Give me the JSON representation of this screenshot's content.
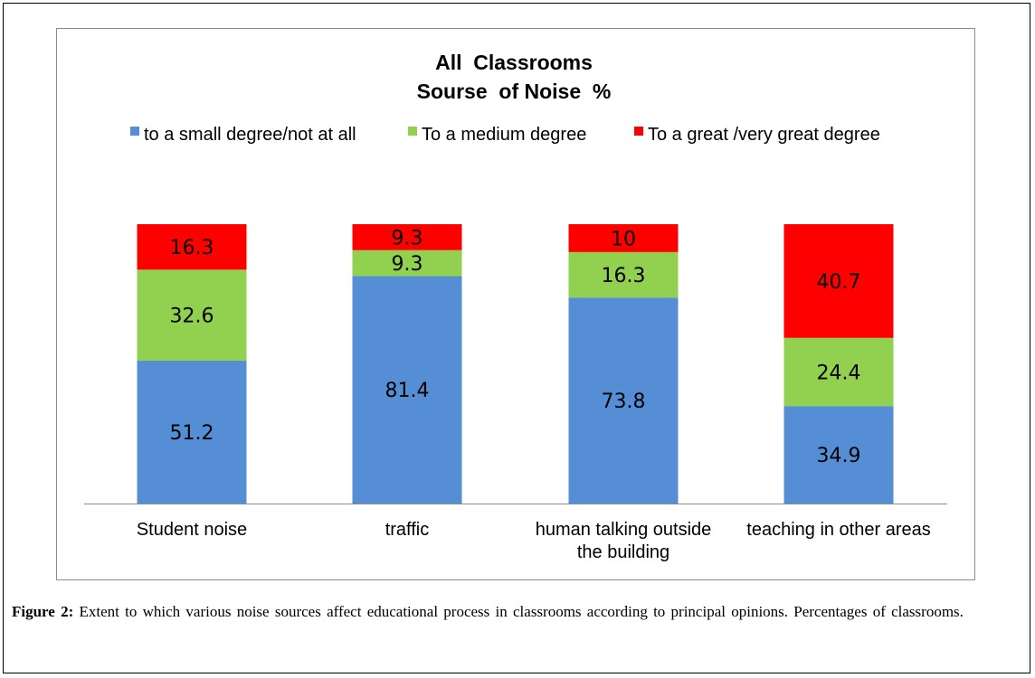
{
  "chart_data": {
    "type": "bar",
    "stacked": true,
    "title_lines": [
      "All  Classrooms",
      "Sourse  of Noise  %"
    ],
    "categories": [
      [
        "Student noise"
      ],
      [
        "traffic"
      ],
      [
        "human talking outside",
        "the building"
      ],
      [
        "teaching in other areas"
      ]
    ],
    "series": [
      {
        "name": "to a small degree/not at all",
        "color": "#558ED5",
        "values": [
          51.2,
          81.4,
          73.8,
          34.9
        ]
      },
      {
        "name": "To a medium degree",
        "color": "#92D050",
        "values": [
          32.6,
          9.3,
          16.3,
          24.4
        ]
      },
      {
        "name": "To a great /very great degree",
        "color": "#FF0000",
        "values": [
          16.3,
          9.3,
          10,
          40.7
        ]
      }
    ],
    "legend_position": "top",
    "grid": false
  },
  "caption": {
    "label": "Figure 2:",
    "text": "Extent to which various noise sources affect educational process in classrooms according to principal opinions. Percentages of classrooms."
  }
}
